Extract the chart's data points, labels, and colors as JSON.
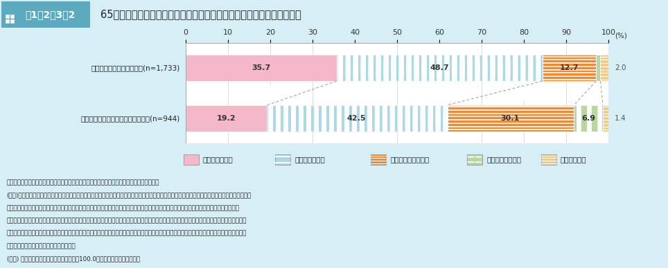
{
  "title_box": "図1－2－3－2",
  "title_main": "65歳以上の者の社会活動への参加状況と生きがいの感じ方（複数回答）",
  "rows": [
    {
      "label": "何らかの活動に参加した人(n=1,733)",
      "values": [
        35.7,
        48.7,
        12.7,
        1.0,
        2.0
      ],
      "extra_label": "2.0"
    },
    {
      "label": "いずれの活動にも参加しなかった人(n=944)",
      "values": [
        19.2,
        42.5,
        30.1,
        6.9,
        1.4
      ],
      "extra_label": "1.4"
    }
  ],
  "legend_labels": [
    "十分感じている",
    "多少感じている",
    "あまり感じていない",
    "全く感じていない",
    "不明・無回答"
  ],
  "colors": [
    "#f4b8c8",
    "#add8e8",
    "#f5882d",
    "#b8d8a0",
    "#f5c87a"
  ],
  "bg_color": "#d6eef5",
  "note_lines": [
    "資料：内閣府「令和５年度高齢社会対策総合調査（高齢者の住宅と生活環境に関する調査）」",
    "(注１)「何らかの活動に参加した人」とは、直近１年間に「趣味（俳句、詩吟、陶芸等）」「健康・スポーツ（体操、歩こう会、ゲートボール等）」",
    "　「生産・就業（生きがいのための園芸・飼育、シルバー人材センター等）」「教育関連・文化啓発活動（学習会、子ども会の育成、郷土芸能",
    "　の伝承等）」「生活環境改善（環境美化、緑化推進、まちづくり等）」「安全管理（交通安全、防犯・防災等）」「高齢者の支援（家事援助、移",
    "　送等）」「子育て支援（保育への手伝い等）」「地域行事（祭りなどの地域の催しものに参加）」「地域行事（祭りなどの地域の催しものの世話",
    "　等）」のいずれかに参加した人を指す。",
    "(注２) 四捨五入の関係で、足し合わせても100.0％にならない場合がある。"
  ],
  "xticks": [
    0,
    10,
    20,
    30,
    40,
    50,
    60,
    70,
    80,
    90,
    100
  ]
}
